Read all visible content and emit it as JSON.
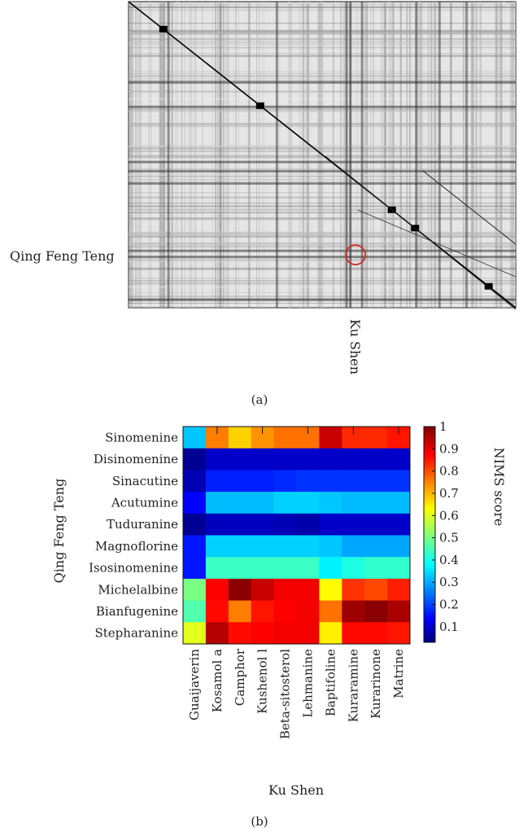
{
  "panel_a": {
    "caption": "(a)",
    "row_label": "Qing Feng Teng",
    "col_label": "Ku Shen",
    "type": "heatmap",
    "description_colors": {
      "dark": "#111111",
      "mid": "#8a8a8a",
      "light": "#e8e8e8",
      "highlight": "#d62728"
    }
  },
  "panel_b": {
    "caption": "(b)"
  },
  "chart_data": {
    "type": "heatmap",
    "title": "",
    "xlabel": "Ku Shen",
    "ylabel": "Qing Feng Teng",
    "colorbar_label": "NIMS score",
    "colorbar_ticks": [
      "0.1",
      "0.2",
      "0.3",
      "0.4",
      "0.5",
      "0.6",
      "0.7",
      "0.8",
      "0.9",
      "1"
    ],
    "clim": [
      0.03,
      1.0
    ],
    "colormap": "jet",
    "x": [
      "Guaijaverin",
      "Kosamol a",
      "Camphor",
      "Kushenol l",
      "Beta-sitosterol",
      "Lehmanine",
      "Baptifoline",
      "Kuraramine",
      "Kurarinone",
      "Matrine"
    ],
    "y": [
      "Sinomenine",
      "Disinomenine",
      "Sinacutine",
      "Acutumine",
      "Tuduranine",
      "Magnoflorine",
      "Isosinomenine",
      "Michelalbine",
      "Bianfugenine",
      "Stepharanine"
    ],
    "values": [
      [
        0.34,
        0.76,
        0.68,
        0.74,
        0.77,
        0.77,
        0.93,
        0.84,
        0.84,
        0.86
      ],
      [
        0.05,
        0.1,
        0.1,
        0.1,
        0.1,
        0.1,
        0.1,
        0.1,
        0.1,
        0.1
      ],
      [
        0.08,
        0.18,
        0.18,
        0.18,
        0.19,
        0.2,
        0.2,
        0.2,
        0.2,
        0.2
      ],
      [
        0.15,
        0.33,
        0.33,
        0.33,
        0.35,
        0.35,
        0.34,
        0.33,
        0.33,
        0.33
      ],
      [
        0.05,
        0.09,
        0.09,
        0.09,
        0.08,
        0.07,
        0.1,
        0.1,
        0.1,
        0.1
      ],
      [
        0.17,
        0.35,
        0.35,
        0.35,
        0.35,
        0.35,
        0.34,
        0.31,
        0.31,
        0.31
      ],
      [
        0.17,
        0.45,
        0.45,
        0.45,
        0.45,
        0.45,
        0.38,
        0.42,
        0.44,
        0.44
      ],
      [
        0.51,
        0.88,
        0.99,
        0.93,
        0.89,
        0.89,
        0.64,
        0.83,
        0.81,
        0.85
      ],
      [
        0.47,
        0.87,
        0.76,
        0.86,
        0.88,
        0.89,
        0.77,
        0.97,
        0.99,
        0.96
      ],
      [
        0.61,
        0.95,
        0.87,
        0.88,
        0.89,
        0.89,
        0.65,
        0.87,
        0.87,
        0.86
      ]
    ],
    "top_tick_marks_at_columns": [
      1,
      3,
      5,
      7,
      9
    ]
  }
}
